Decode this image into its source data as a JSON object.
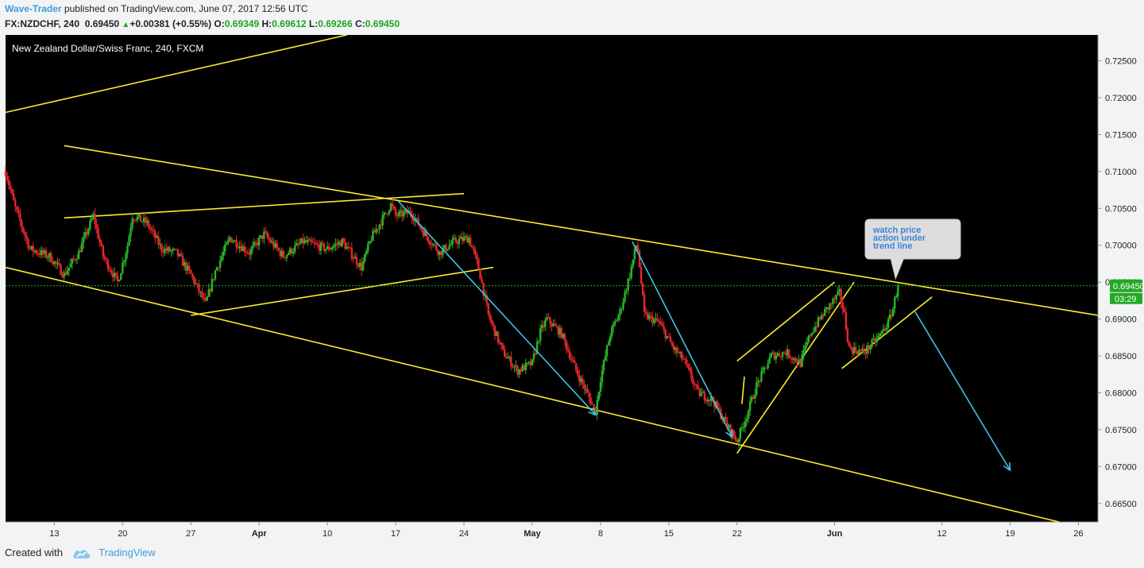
{
  "header": {
    "author": "Wave-Trader",
    "published": "published on TradingView.com, June 07, 2017 12:56 UTC",
    "symbol": "FX:NZDCHF, 240",
    "price": "0.69450",
    "change": "+0.00381 (+0.55%)",
    "o_label": "O:",
    "o_value": "0.69349",
    "h_label": "H:",
    "h_value": "0.69612",
    "l_label": "L:",
    "l_value": "0.69266",
    "c_label": "C:",
    "c_value": "0.69450"
  },
  "footer": {
    "created_with": "Created with",
    "brand": "TradingView"
  },
  "chart_data": {
    "type": "candlestick",
    "title": "New Zealand Dollar/Swiss Franc, 240, FXCM",
    "x_start": "2017-03-08",
    "x_end": "2017-06-28",
    "x_tick_labels": [
      {
        "date": "2017-03-13",
        "label": "13"
      },
      {
        "date": "2017-03-20",
        "label": "20"
      },
      {
        "date": "2017-03-27",
        "label": "27"
      },
      {
        "date": "2017-04-03",
        "label": "Apr"
      },
      {
        "date": "2017-04-10",
        "label": "10"
      },
      {
        "date": "2017-04-17",
        "label": "17"
      },
      {
        "date": "2017-04-24",
        "label": "24"
      },
      {
        "date": "2017-05-01",
        "label": "May"
      },
      {
        "date": "2017-05-08",
        "label": "8"
      },
      {
        "date": "2017-05-15",
        "label": "15"
      },
      {
        "date": "2017-05-22",
        "label": "22"
      },
      {
        "date": "2017-06-01",
        "label": "Jun"
      },
      {
        "date": "2017-06-12",
        "label": "12"
      },
      {
        "date": "2017-06-19",
        "label": "19"
      },
      {
        "date": "2017-06-26",
        "label": "26"
      }
    ],
    "y_ticks": [
      "0.72500",
      "0.72000",
      "0.71500",
      "0.71000",
      "0.70500",
      "0.70000",
      "0.69500",
      "0.69000",
      "0.68500",
      "0.68000",
      "0.67500",
      "0.67000",
      "0.66500"
    ],
    "ylim": [
      0.6625,
      0.7285
    ],
    "grid": false,
    "current_price": {
      "value": 0.6945,
      "label": "0.69450",
      "timer": "03:29"
    },
    "close_path": [
      {
        "date": "2017-03-08T00:00",
        "close": 0.71
      },
      {
        "date": "2017-03-09T00:00",
        "close": 0.705
      },
      {
        "date": "2017-03-10T12:00",
        "close": 0.6995
      },
      {
        "date": "2017-03-12T12:00",
        "close": 0.6985
      },
      {
        "date": "2017-03-14T00:00",
        "close": 0.696
      },
      {
        "date": "2017-03-15T12:00",
        "close": 0.699
      },
      {
        "date": "2017-03-17T00:00",
        "close": 0.704
      },
      {
        "date": "2017-03-18T00:00",
        "close": 0.6985
      },
      {
        "date": "2017-03-19T12:00",
        "close": 0.695
      },
      {
        "date": "2017-03-20T12:00",
        "close": 0.7
      },
      {
        "date": "2017-03-21T00:00",
        "close": 0.704
      },
      {
        "date": "2017-03-22T12:00",
        "close": 0.703
      },
      {
        "date": "2017-03-24T00:00",
        "close": 0.6995
      },
      {
        "date": "2017-03-25T12:00",
        "close": 0.699
      },
      {
        "date": "2017-03-27T00:00",
        "close": 0.696
      },
      {
        "date": "2017-03-28T12:00",
        "close": 0.692
      },
      {
        "date": "2017-03-29T12:00",
        "close": 0.6965
      },
      {
        "date": "2017-03-31T00:00",
        "close": 0.701
      },
      {
        "date": "2017-04-02T00:00",
        "close": 0.699
      },
      {
        "date": "2017-04-03T12:00",
        "close": 0.7015
      },
      {
        "date": "2017-04-05T12:00",
        "close": 0.6985
      },
      {
        "date": "2017-04-07T12:00",
        "close": 0.7005
      },
      {
        "date": "2017-04-10T00:00",
        "close": 0.6995
      },
      {
        "date": "2017-04-11T12:00",
        "close": 0.7005
      },
      {
        "date": "2017-04-13T12:00",
        "close": 0.697
      },
      {
        "date": "2017-04-14T12:00",
        "close": 0.701
      },
      {
        "date": "2017-04-16T12:00",
        "close": 0.7055
      },
      {
        "date": "2017-04-17T00:00",
        "close": 0.704
      },
      {
        "date": "2017-04-18T12:00",
        "close": 0.7045
      },
      {
        "date": "2017-04-20T00:00",
        "close": 0.7015
      },
      {
        "date": "2017-04-21T12:00",
        "close": 0.699
      },
      {
        "date": "2017-04-23T00:00",
        "close": 0.7005
      },
      {
        "date": "2017-04-24T12:00",
        "close": 0.701
      },
      {
        "date": "2017-04-25T12:00",
        "close": 0.697
      },
      {
        "date": "2017-04-26T12:00",
        "close": 0.6905
      },
      {
        "date": "2017-04-28T00:00",
        "close": 0.6855
      },
      {
        "date": "2017-04-29T12:00",
        "close": 0.683
      },
      {
        "date": "2017-05-01T00:00",
        "close": 0.684
      },
      {
        "date": "2017-05-01T18:00",
        "close": 0.688
      },
      {
        "date": "2017-05-02T12:00",
        "close": 0.69
      },
      {
        "date": "2017-05-04T00:00",
        "close": 0.688
      },
      {
        "date": "2017-05-05T12:00",
        "close": 0.683
      },
      {
        "date": "2017-05-07T12:00",
        "close": 0.6775
      },
      {
        "date": "2017-05-08T00:00",
        "close": 0.682
      },
      {
        "date": "2017-05-09T00:00",
        "close": 0.688
      },
      {
        "date": "2017-05-10T00:00",
        "close": 0.691
      },
      {
        "date": "2017-05-11T00:00",
        "close": 0.696
      },
      {
        "date": "2017-05-11T18:00",
        "close": 0.7005
      },
      {
        "date": "2017-05-12T12:00",
        "close": 0.6905
      },
      {
        "date": "2017-05-14T00:00",
        "close": 0.6895
      },
      {
        "date": "2017-05-15T12:00",
        "close": 0.686
      },
      {
        "date": "2017-05-16T12:00",
        "close": 0.6845
      },
      {
        "date": "2017-05-18T00:00",
        "close": 0.68
      },
      {
        "date": "2017-05-19T12:00",
        "close": 0.679
      },
      {
        "date": "2017-05-21T00:00",
        "close": 0.6755
      },
      {
        "date": "2017-05-22T00:00",
        "close": 0.6735
      },
      {
        "date": "2017-05-23T00:00",
        "close": 0.677
      },
      {
        "date": "2017-05-24T00:00",
        "close": 0.681
      },
      {
        "date": "2017-05-25T12:00",
        "close": 0.685
      },
      {
        "date": "2017-05-27T00:00",
        "close": 0.6855
      },
      {
        "date": "2017-05-28T12:00",
        "close": 0.684
      },
      {
        "date": "2017-05-29T12:00",
        "close": 0.688
      },
      {
        "date": "2017-05-31T00:00",
        "close": 0.691
      },
      {
        "date": "2017-06-01T12:00",
        "close": 0.6935
      },
      {
        "date": "2017-06-02T00:00",
        "close": 0.6905
      },
      {
        "date": "2017-06-02T12:00",
        "close": 0.686
      },
      {
        "date": "2017-06-04T00:00",
        "close": 0.6855
      },
      {
        "date": "2017-06-05T12:00",
        "close": 0.6875
      },
      {
        "date": "2017-06-06T12:00",
        "close": 0.6895
      },
      {
        "date": "2017-06-07T00:00",
        "close": 0.6915
      },
      {
        "date": "2017-06-07T12:00",
        "close": 0.6945
      }
    ],
    "annotation": {
      "text_lines": [
        "watch price",
        "action under",
        "trend line"
      ]
    }
  },
  "colors": {
    "background": "#000000",
    "up_candle": "#29b629",
    "down_candle": "#e8262b",
    "trendline": "#ffeb2f",
    "impulse_arrow": "#3ec6e6",
    "price_label": "#25a824",
    "axis_text": "#222222"
  }
}
